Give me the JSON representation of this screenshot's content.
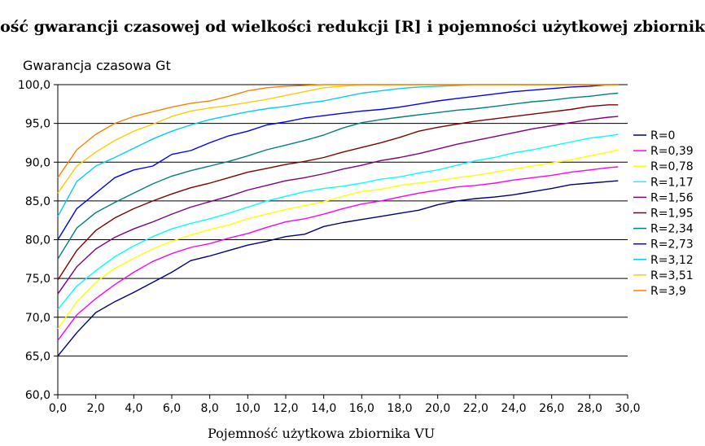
{
  "chart_data": {
    "type": "line",
    "title": "Zależność gwarancji czasowej od wielkości redukcji [R] i pojemności użytkowej zbiornika",
    "ylabel": "Gwarancja czasowa Gt",
    "xlabel": "Pojemność użytkowa zbiornika VU",
    "xlim": [
      0,
      30
    ],
    "ylim": [
      60,
      100
    ],
    "x_ticks": [
      "0,0",
      "2,0",
      "4,0",
      "6,0",
      "8,0",
      "10,0",
      "12,0",
      "14,0",
      "16,0",
      "18,0",
      "20,0",
      "22,0",
      "24,0",
      "26,0",
      "28,0",
      "30,0"
    ],
    "y_ticks": [
      "60,0",
      "65,0",
      "70,0",
      "75,0",
      "80,0",
      "85,0",
      "90,0",
      "95,0",
      "100,0"
    ],
    "grid": "horizontal",
    "legend": "right",
    "x": [
      0,
      1,
      2,
      3,
      4,
      5,
      6,
      7,
      8,
      9,
      10,
      11,
      12,
      13,
      14,
      15,
      16,
      17,
      18,
      19,
      20,
      21,
      22,
      23,
      24,
      25,
      26,
      27,
      28,
      29,
      29.5
    ],
    "series": [
      {
        "name": "R=0",
        "color": "#000080",
        "values": [
          65.0,
          68.0,
          70.6,
          72.0,
          73.2,
          74.5,
          75.8,
          77.3,
          77.9,
          78.6,
          79.3,
          79.8,
          80.4,
          80.7,
          81.7,
          82.2,
          82.6,
          83.0,
          83.4,
          83.8,
          84.5,
          85.0,
          85.3,
          85.5,
          85.8,
          86.2,
          86.6,
          87.1,
          87.3,
          87.5,
          87.6
        ]
      },
      {
        "name": "R=0,39",
        "color": "#ff00ff",
        "values": [
          67.0,
          70.3,
          72.4,
          74.2,
          75.8,
          77.2,
          78.2,
          79.0,
          79.5,
          80.2,
          80.8,
          81.6,
          82.3,
          82.7,
          83.3,
          84.0,
          84.6,
          85.0,
          85.5,
          86.0,
          86.4,
          86.8,
          87.0,
          87.3,
          87.7,
          88.0,
          88.3,
          88.7,
          89.0,
          89.3,
          89.4
        ]
      },
      {
        "name": "R=0,78",
        "color": "#ffff00",
        "values": [
          68.5,
          72.0,
          74.5,
          76.3,
          77.6,
          78.8,
          79.8,
          80.6,
          81.3,
          81.9,
          82.7,
          83.3,
          83.9,
          84.4,
          84.9,
          85.6,
          86.2,
          86.5,
          87.0,
          87.3,
          87.6,
          88.0,
          88.3,
          88.7,
          89.1,
          89.5,
          89.9,
          90.3,
          90.8,
          91.3,
          91.6
        ]
      },
      {
        "name": "R=1,17",
        "color": "#00ffff",
        "values": [
          71.0,
          74.0,
          76.0,
          77.8,
          79.2,
          80.4,
          81.4,
          82.1,
          82.7,
          83.4,
          84.2,
          85.0,
          85.6,
          86.2,
          86.6,
          86.9,
          87.3,
          87.8,
          88.1,
          88.6,
          89.0,
          89.6,
          90.2,
          90.6,
          91.2,
          91.6,
          92.1,
          92.6,
          93.1,
          93.4,
          93.6
        ]
      },
      {
        "name": "R=1,56",
        "color": "#800080",
        "values": [
          73.0,
          76.5,
          78.8,
          80.3,
          81.4,
          82.3,
          83.3,
          84.2,
          84.9,
          85.6,
          86.4,
          87.0,
          87.6,
          88.0,
          88.5,
          89.1,
          89.6,
          90.2,
          90.6,
          91.1,
          91.7,
          92.3,
          92.8,
          93.3,
          93.8,
          94.3,
          94.7,
          95.1,
          95.5,
          95.8,
          95.9
        ]
      },
      {
        "name": "R=1,95",
        "color": "#800000",
        "values": [
          74.8,
          78.6,
          81.2,
          82.8,
          84.0,
          85.0,
          85.9,
          86.7,
          87.3,
          88.0,
          88.7,
          89.2,
          89.7,
          90.1,
          90.6,
          91.3,
          91.9,
          92.5,
          93.2,
          94.0,
          94.5,
          94.9,
          95.3,
          95.6,
          95.9,
          96.2,
          96.5,
          96.8,
          97.2,
          97.4,
          97.4
        ]
      },
      {
        "name": "R=2,34",
        "color": "#008080",
        "values": [
          77.5,
          81.5,
          83.5,
          84.8,
          86.0,
          87.2,
          88.2,
          88.9,
          89.5,
          90.1,
          90.8,
          91.6,
          92.2,
          92.8,
          93.5,
          94.4,
          95.1,
          95.5,
          95.8,
          96.1,
          96.4,
          96.7,
          96.9,
          97.2,
          97.5,
          97.8,
          98.0,
          98.3,
          98.5,
          98.8,
          98.9
        ]
      },
      {
        "name": "R=2,73",
        "color": "#0000ff",
        "values": [
          80.0,
          84.0,
          86.0,
          88.0,
          89.0,
          89.5,
          91.0,
          91.5,
          92.5,
          93.4,
          94.0,
          94.8,
          95.2,
          95.7,
          96.0,
          96.3,
          96.6,
          96.8,
          97.1,
          97.5,
          97.9,
          98.2,
          98.5,
          98.8,
          99.1,
          99.3,
          99.5,
          99.7,
          99.8,
          100.0,
          100.0
        ]
      },
      {
        "name": "R=3,12",
        "color": "#00ccff",
        "values": [
          83.0,
          87.5,
          89.5,
          90.6,
          91.8,
          93.0,
          94.0,
          94.8,
          95.5,
          96.0,
          96.5,
          96.9,
          97.2,
          97.6,
          97.9,
          98.4,
          98.9,
          99.2,
          99.5,
          99.7,
          99.8,
          99.9,
          100.0,
          100.0,
          100.0,
          100.0,
          100.0,
          100.0,
          100.0,
          100.0,
          100.0
        ]
      },
      {
        "name": "R=3,51",
        "color": "#ffcc00",
        "values": [
          86.0,
          89.5,
          91.3,
          92.8,
          94.0,
          94.9,
          95.9,
          96.6,
          97.0,
          97.3,
          97.7,
          98.1,
          98.6,
          99.1,
          99.6,
          99.8,
          100.0,
          100.0,
          100.0,
          100.0,
          100.0,
          100.0,
          100.0,
          100.0,
          100.0,
          100.0,
          100.0,
          100.0,
          100.0,
          100.0,
          100.0
        ]
      },
      {
        "name": "R=3,9",
        "color": "#ff8000",
        "values": [
          88.0,
          91.6,
          93.6,
          95.0,
          95.9,
          96.5,
          97.1,
          97.6,
          97.9,
          98.5,
          99.2,
          99.6,
          99.8,
          99.9,
          100.0,
          100.0,
          100.0,
          100.0,
          100.0,
          100.0,
          100.0,
          100.0,
          100.0,
          100.0,
          100.0,
          100.0,
          100.0,
          100.0,
          100.0,
          100.0,
          100.0
        ]
      }
    ]
  }
}
